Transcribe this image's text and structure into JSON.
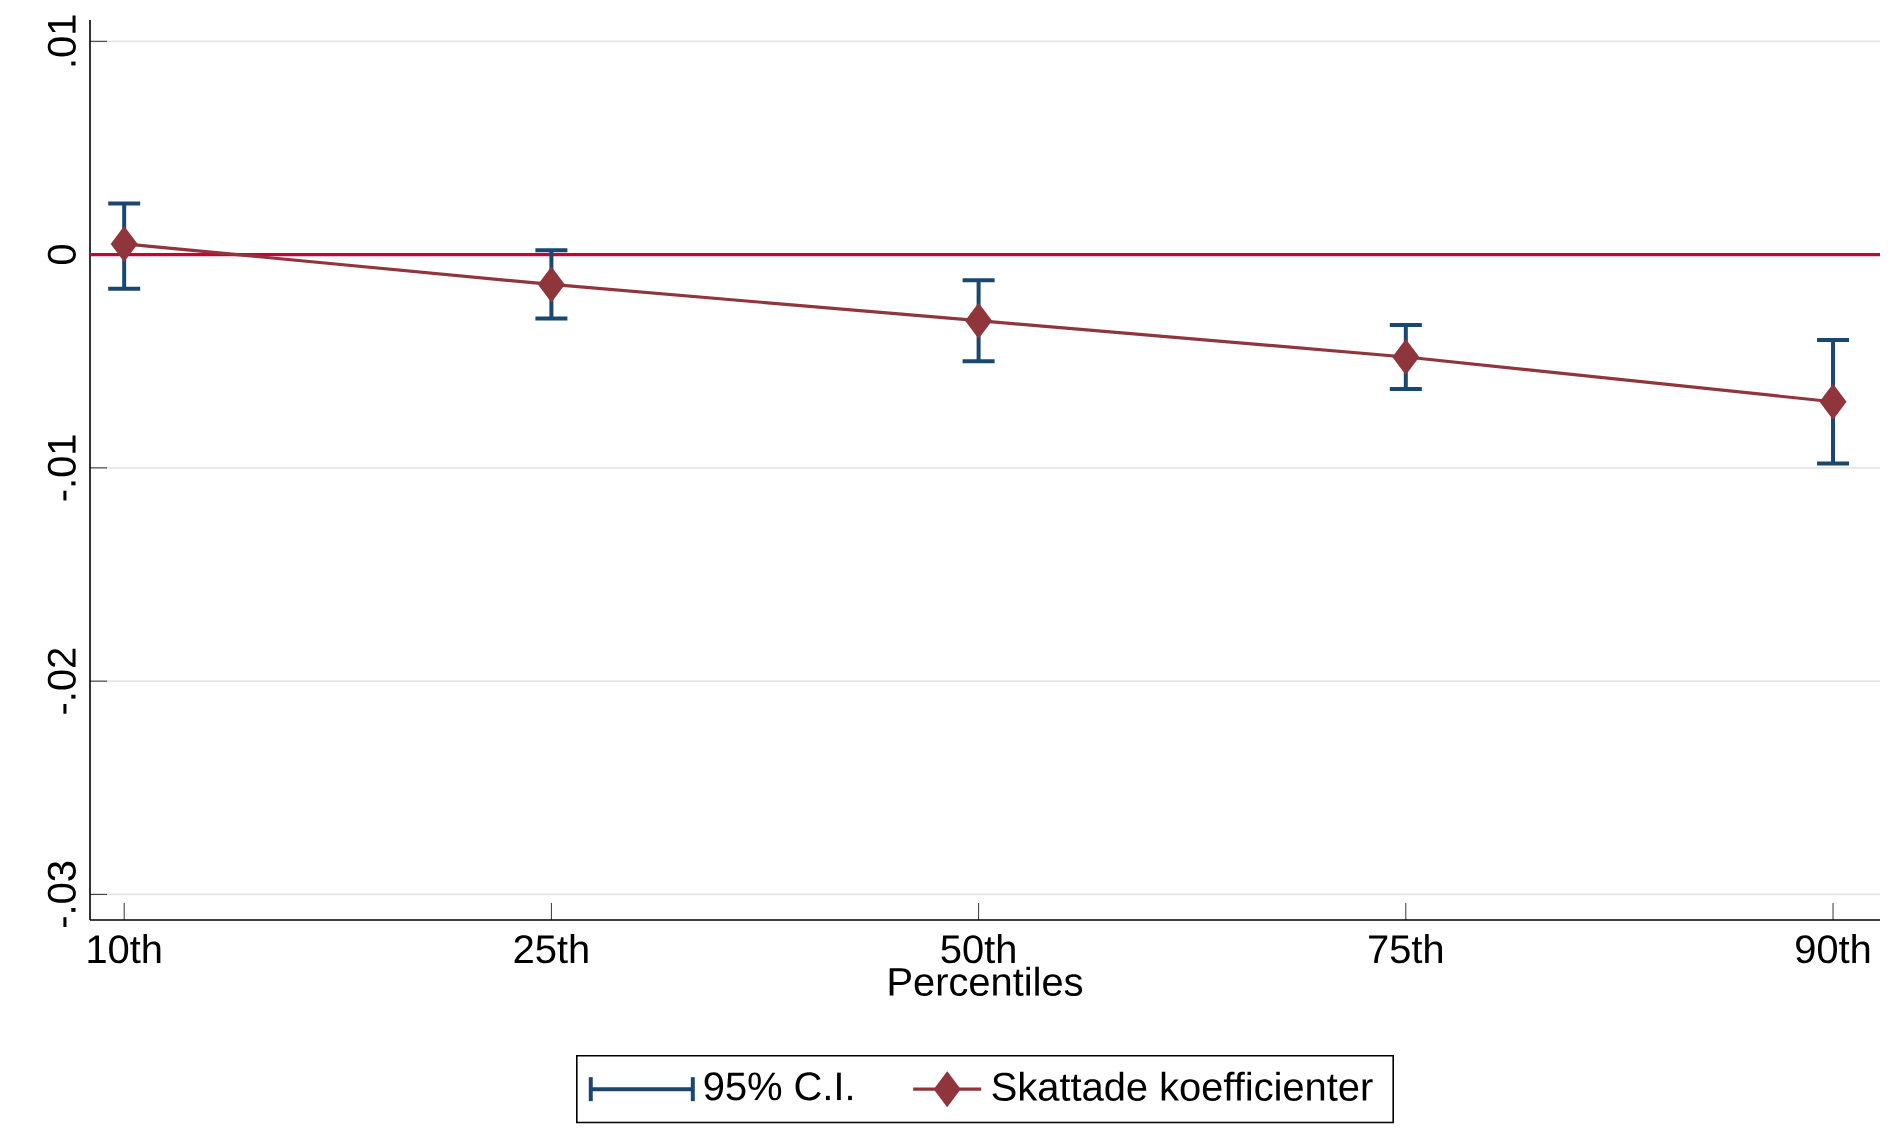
{
  "chart_data": {
    "type": "line",
    "xlabel": "Percentiles",
    "categories": [
      "10th",
      "25th",
      "50th",
      "75th",
      "90th"
    ],
    "series": [
      {
        "name": "Skattade koefficienter",
        "type": "line",
        "marker": "diamond",
        "color": "#90353b",
        "values": [
          0.0005,
          -0.0014,
          -0.0031,
          -0.0048,
          -0.0069
        ],
        "errors": [
          [
            -0.0016,
            0.0024
          ],
          [
            -0.003,
            0.0002
          ],
          [
            -0.005,
            -0.0012
          ],
          [
            -0.0063,
            -0.0033
          ],
          [
            -0.0098,
            -0.004
          ]
        ]
      }
    ],
    "annotations": [
      "95% C.I."
    ],
    "ylim": [
      -0.0312,
      0.011
    ],
    "yticks": [
      {
        "value": -0.03,
        "label": "-.03"
      },
      {
        "value": -0.02,
        "label": "-.02"
      },
      {
        "value": -0.01,
        "label": "-.01"
      },
      {
        "value": 0,
        "label": "0"
      },
      {
        "value": 0.01,
        "label": ".01"
      }
    ],
    "ref_lines": [
      {
        "axis": "y",
        "value": 0,
        "color": "#c10534"
      }
    ],
    "grid": "y",
    "legend": "bottom"
  }
}
